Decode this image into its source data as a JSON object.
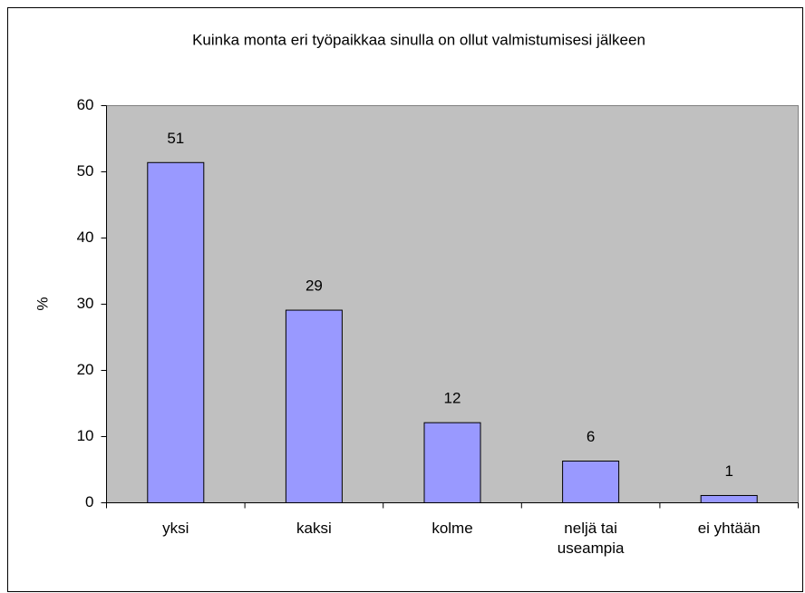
{
  "chart_data": {
    "type": "bar",
    "title": "Kuinka monta eri työpaikkaa sinulla on ollut valmistumisesi jälkeen",
    "y_label": "%",
    "categories": [
      "yksi",
      "kaksi",
      "kolme",
      "neljä tai useampia",
      "ei yhtään"
    ],
    "values": [
      51.4,
      29.1,
      12.1,
      6.3,
      1.1
    ],
    "value_labels": [
      "51",
      "29",
      "12",
      "6",
      "1"
    ],
    "color": "#9999ff",
    "ylim": [
      0,
      60
    ],
    "yticks": [
      0,
      10,
      20,
      30,
      40,
      50,
      60
    ],
    "grid": false
  }
}
